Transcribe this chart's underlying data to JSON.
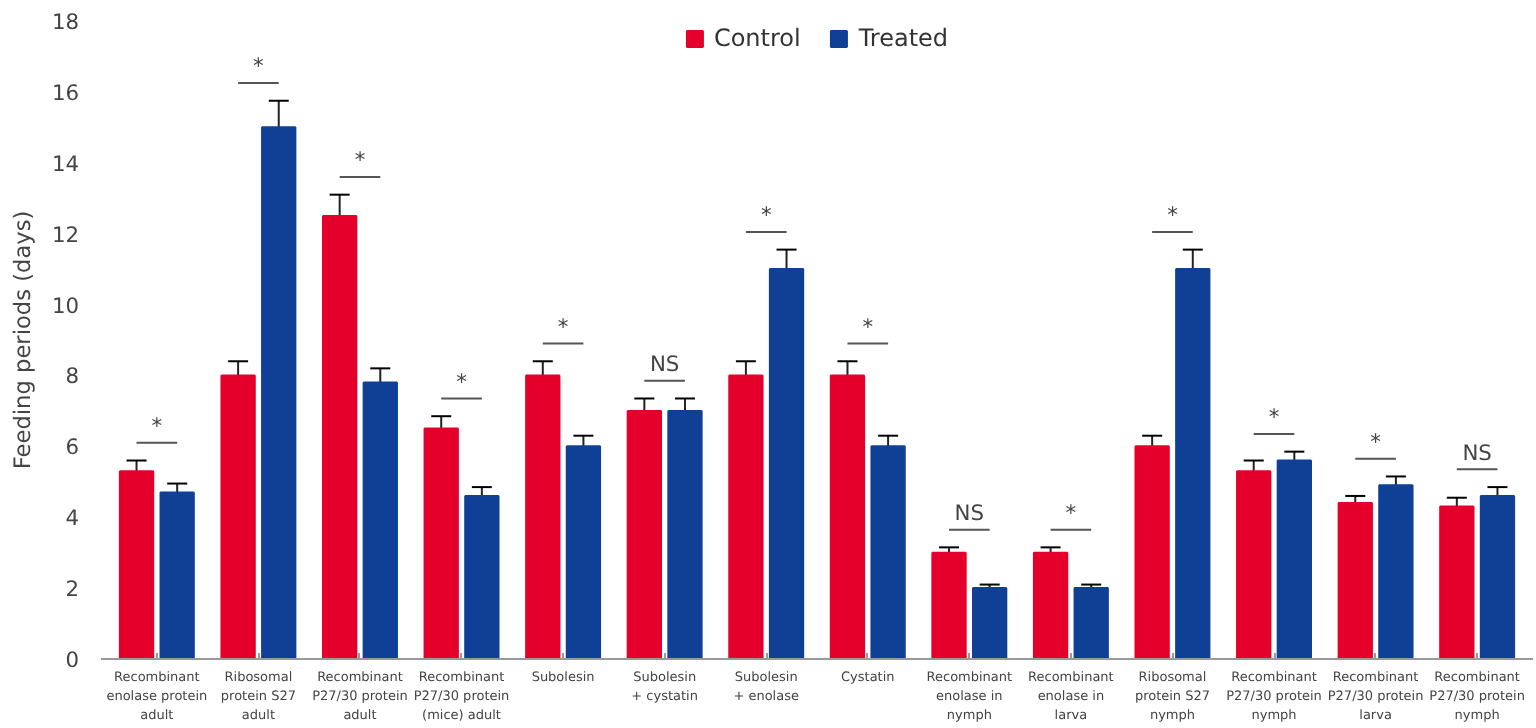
{
  "chart_data": {
    "type": "bar",
    "ylabel": "Feeding periods (days)",
    "categories": [
      "Recombinant\nenolase protein\nadult",
      "Ribosomal\nprotein S27\nadult",
      "Recombinant\nP27/30 protein\nadult",
      "Recombinant\nP27/30 protein\n(mice) adult",
      "Subolesin",
      "Subolesin\n+ cystatin",
      "Subolesin\n+ enolase",
      "Cystatin",
      "Recombinant\nenolase in\nnymph",
      "Recombinant\nenolase in\nlarva",
      "Ribosomal\nprotein S27\nnymph",
      "Recombinant\nP27/30 protein\nnymph",
      "Recombinant\nP27/30 protein\nlarva",
      "Recombinant\nP27/30 protein\nnymph"
    ],
    "series": [
      {
        "name": "Control",
        "color": "#e4002b",
        "values": [
          5.3,
          8,
          12.5,
          6.5,
          8,
          7,
          8,
          8,
          3,
          3,
          6,
          5.3,
          4.4,
          4.3
        ],
        "errors": [
          0.3,
          0.4,
          0.6,
          0.35,
          0.4,
          0.35,
          0.4,
          0.4,
          0.15,
          0.15,
          0.3,
          0.3,
          0.2,
          0.25
        ]
      },
      {
        "name": "Treated",
        "color": "#0f4096",
        "values": [
          4.7,
          15,
          7.8,
          4.6,
          6,
          7,
          11,
          6,
          2,
          2,
          11,
          5.6,
          4.9,
          4.6
        ],
        "errors": [
          0.25,
          0.75,
          0.4,
          0.25,
          0.3,
          0.35,
          0.55,
          0.3,
          0.1,
          0.1,
          0.55,
          0.25,
          0.25,
          0.25
        ]
      }
    ],
    "annotations": [
      "*",
      "*",
      "*",
      "*",
      "*",
      "NS",
      "*",
      "*",
      "NS",
      "*",
      "*",
      "*",
      "*",
      "NS"
    ],
    "ylim": [
      0,
      18
    ],
    "yticks": [
      0,
      2,
      4,
      6,
      8,
      10,
      12,
      14,
      16,
      18
    ],
    "grid": false,
    "legend": "top"
  }
}
